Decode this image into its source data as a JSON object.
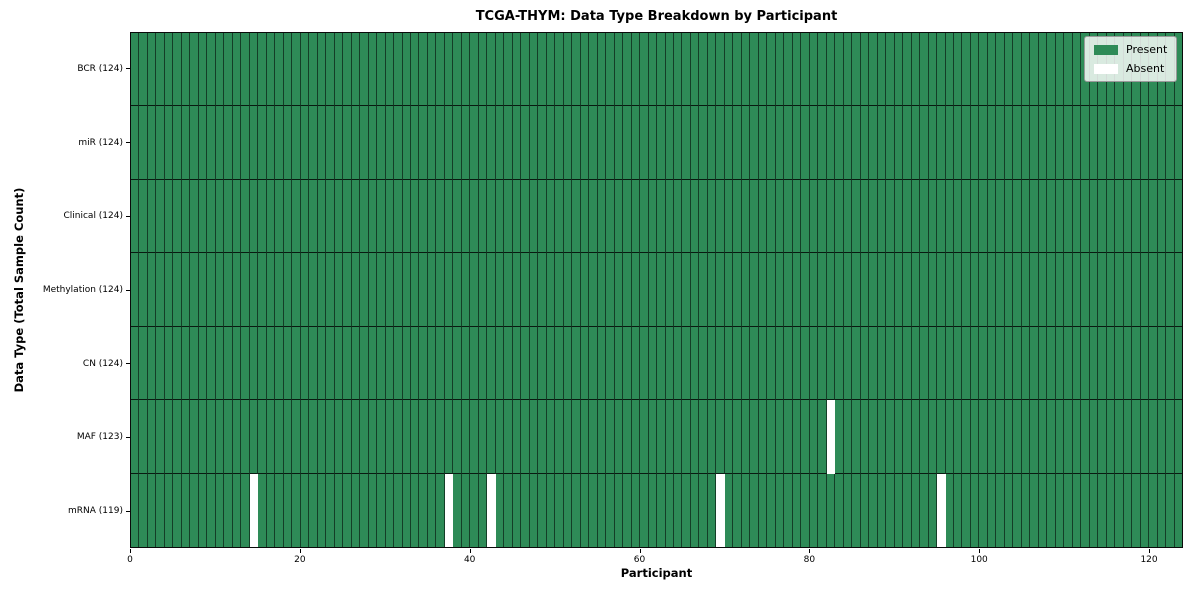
{
  "title": "TCGA-THYM: Data Type Breakdown by Participant",
  "x_axis_label": "Participant",
  "y_axis_label": "Data Type (Total Sample Count)",
  "legend": {
    "present_label": "Present",
    "absent_label": "Absent"
  },
  "colors": {
    "present": "#2e8b57",
    "absent": "#ffffff",
    "cell_edge": "rgba(0,0,0,0.55)",
    "spine": "#0a0a0a"
  },
  "chart_data": {
    "type": "heatmap",
    "title": "TCGA-THYM: Data Type Breakdown by Participant",
    "xlabel": "Participant",
    "ylabel": "Data Type (Total Sample Count)",
    "n_participants": 124,
    "xlim": [
      0,
      124
    ],
    "x_ticks": [
      0,
      20,
      40,
      60,
      80,
      100,
      120
    ],
    "legend_entries": [
      "Present",
      "Absent"
    ],
    "legend_position": "upper right",
    "grid": false,
    "rows": [
      {
        "label": "BCR (124)",
        "data_type": "BCR",
        "present_count": 124,
        "absent_participants": []
      },
      {
        "label": "miR (124)",
        "data_type": "miR",
        "present_count": 124,
        "absent_participants": []
      },
      {
        "label": "Clinical (124)",
        "data_type": "Clinical",
        "present_count": 124,
        "absent_participants": []
      },
      {
        "label": "Methylation (124)",
        "data_type": "Methylation",
        "present_count": 124,
        "absent_participants": []
      },
      {
        "label": "CN (124)",
        "data_type": "CN",
        "present_count": 124,
        "absent_participants": []
      },
      {
        "label": "MAF (123)",
        "data_type": "MAF",
        "present_count": 123,
        "absent_participants": [
          82
        ]
      },
      {
        "label": "mRNA (119)",
        "data_type": "mRNA",
        "present_count": 119,
        "absent_participants": [
          14,
          37,
          42,
          69,
          95
        ]
      }
    ]
  }
}
